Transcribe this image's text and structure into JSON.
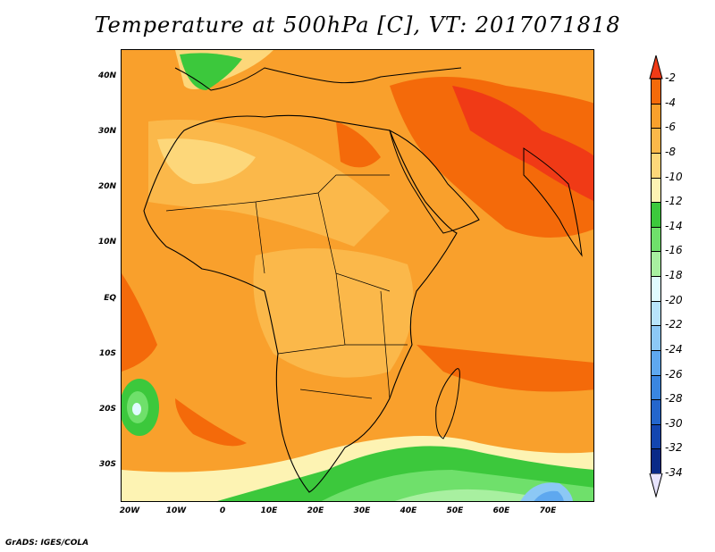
{
  "title": "Temperature at 500hPa [C], VT: 2017071818",
  "credit": "GrADS: IGES/COLA",
  "lat_labels": [
    "40N",
    "30N",
    "20N",
    "10N",
    "EQ",
    "10S",
    "20S",
    "30S"
  ],
  "lon_labels": [
    "20W",
    "10W",
    "0",
    "10E",
    "20E",
    "30E",
    "40E",
    "50E",
    "60E",
    "70E"
  ],
  "colorbar": {
    "labels": [
      "-2",
      "-4",
      "-6",
      "-8",
      "-10",
      "-12",
      "-14",
      "-16",
      "-18",
      "-20",
      "-22",
      "-24",
      "-26",
      "-28",
      "-30",
      "-32",
      "-34"
    ],
    "colors": [
      "#f03a16",
      "#f46a0a",
      "#f9a02c",
      "#fbb84a",
      "#fdd77a",
      "#fdf3b3",
      "#3cc83c",
      "#6fe06b",
      "#a8f0a0",
      "#e0fbff",
      "#b8e4fb",
      "#8cc8f5",
      "#5ea8ef",
      "#3a86e0",
      "#2466cc",
      "#1446b0",
      "#0a2a88"
    ]
  }
}
